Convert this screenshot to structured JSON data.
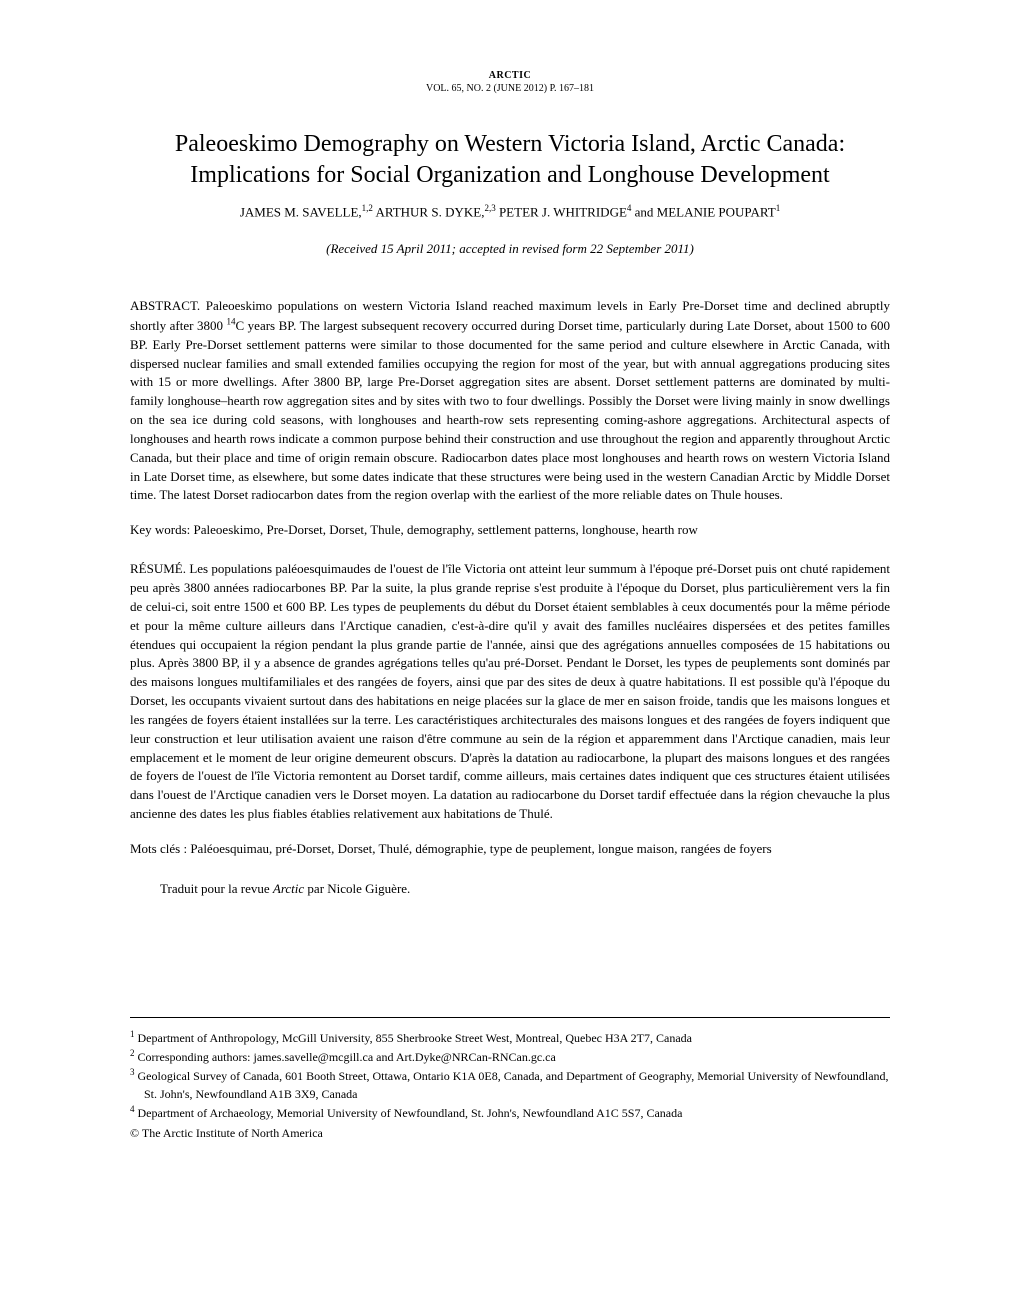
{
  "journal": {
    "name": "ARCTIC",
    "issue": "VOL. 65, NO. 2 (JUNE 2012) P. 167–181"
  },
  "title_line1": "Paleoeskimo Demography on Western Victoria Island, Arctic Canada:",
  "title_line2": "Implications for Social Organization and Longhouse Development",
  "authors_html": "JAMES M. SAVELLE,<sup>1,2</sup> ARTHUR S. DYKE,<sup>2,3</sup> PETER J. WHITRIDGE<sup>4</sup> and MELANIE POUPART<sup>1</sup>",
  "received": "(Received 15 April 2011; accepted in revised form 22 September 2011)",
  "abstract_label": "ABSTRACT. ",
  "abstract_text": "Paleoeskimo populations on western Victoria Island reached maximum levels in Early Pre-Dorset time and declined abruptly shortly after 3800 <sup class=\"c14\">14</sup>C years BP. The largest subsequent recovery occurred during Dorset time, particularly during Late Dorset, about 1500 to 600 BP. Early Pre-Dorset settlement patterns were similar to those documented for the same period and culture elsewhere in Arctic Canada, with dispersed nuclear families and small extended families occupying the region for most of the year, but with annual aggregations producing sites with 15 or more dwellings. After 3800 BP, large Pre-Dorset aggregation sites are absent. Dorset settlement patterns are dominated by multi-family longhouse–hearth row aggregation sites and by sites with two to four dwellings. Possibly the Dorset were living mainly in snow dwellings on the sea ice during cold seasons, with longhouses and hearth-row sets representing coming-ashore aggregations. Architectural aspects of longhouses and hearth rows indicate a common purpose behind their construction and use throughout the region and apparently throughout Arctic Canada, but their place and time of origin remain obscure. Radiocarbon dates place most longhouses and hearth rows on western Victoria Island in Late Dorset time, as elsewhere, but some dates indicate that these structures were being used in the western Canadian Arctic by Middle Dorset time. The latest Dorset radiocarbon dates from the region overlap with the earliest of the more reliable dates on Thule houses.",
  "keywords_label": "Key words: ",
  "keywords": "Paleoeskimo, Pre-Dorset, Dorset, Thule, demography, settlement patterns, longhouse, hearth row",
  "resume_label": "RÉSUMÉ. ",
  "resume_text": "Les populations paléoesquimaudes de l'ouest de l'île Victoria ont atteint leur summum à l'époque pré-Dorset puis ont chuté rapidement peu après 3800 années radiocarbones BP. Par la suite, la plus grande reprise s'est produite à l'époque du Dorset, plus particulièrement vers la fin de celui-ci, soit entre 1500 et 600 BP. Les types de peuplements du début du Dorset étaient semblables à ceux documentés pour la même période et pour la même culture ailleurs dans l'Arctique canadien, c'est-à-dire qu'il y avait des familles nucléaires dispersées et des petites familles étendues qui occupaient la région pendant la plus grande partie de l'année, ainsi que des agrégations annuelles composées de 15 habitations ou plus. Après 3800 BP, il y a absence de grandes agrégations telles qu'au pré-Dorset. Pendant le Dorset, les types de peuplements sont dominés par des maisons longues multifamiliales et des rangées de foyers, ainsi que par des sites de deux à quatre habitations. Il est possible qu'à l'époque du Dorset, les occupants vivaient surtout dans des habitations en neige placées sur la glace de mer en saison froide, tandis que les maisons longues et les rangées de foyers étaient installées sur la terre. Les caractéristiques architecturales des maisons longues et des rangées de foyers indiquent que leur construction et leur utilisation avaient une raison d'être commune au sein de la région et apparemment dans l'Arctique canadien, mais leur emplacement et le moment de leur origine demeurent obscurs. D'après la datation au radiocarbone, la plupart des maisons longues et des rangées de foyers de l'ouest de l'île Victoria remontent au Dorset tardif, comme ailleurs, mais certaines dates indiquent que ces structures étaient utilisées dans l'ouest de l'Arctique canadien vers le Dorset moyen. La datation au radiocarbone du Dorset tardif effectuée dans la région chevauche la plus ancienne des dates les plus fiables établies relativement aux habitations de Thulé.",
  "motscles_label": "Mots clés : ",
  "motscles": "Paléoesquimau, pré-Dorset, Dorset, Thulé, démographie, type de peuplement, longue maison,  rangées de foyers",
  "traduit_prefix": "Traduit pour la revue ",
  "traduit_journal": "Arctic",
  "traduit_suffix": " par Nicole Giguère.",
  "footnotes": [
    "<sup>1</sup> Department of Anthropology, McGill University, 855 Sherbrooke Street West, Montreal, Quebec H3A 2T7, Canada",
    "<sup>2</sup> Corresponding authors: james.savelle@mcgill.ca and Art.Dyke@NRCan-RNCan.gc.ca",
    "<sup>3</sup> Geological Survey of Canada, 601 Booth Street, Ottawa, Ontario K1A 0E8, Canada, and Department of Geography, Memorial University of Newfoundland, St. John's, Newfoundland A1B 3X9, Canada",
    "<sup>4</sup> Department of Archaeology, Memorial University of Newfoundland, St. John's, Newfoundland A1C 5S7, Canada"
  ],
  "copyright": "© The Arctic Institute of North America"
}
